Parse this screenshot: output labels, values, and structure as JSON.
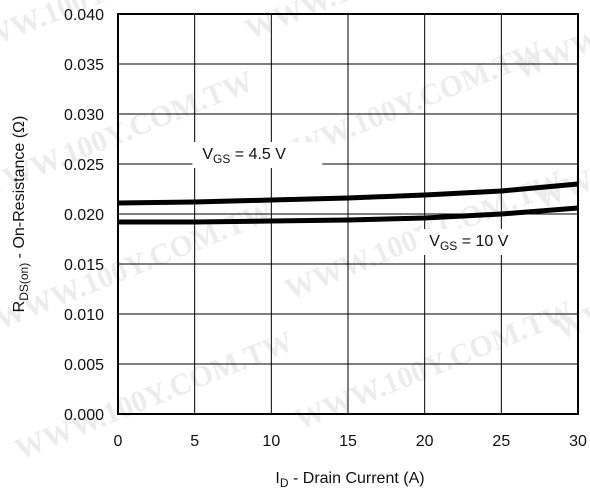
{
  "watermark": "WWW.100Y.COM.TW",
  "chart_data": {
    "type": "line",
    "title": "",
    "xlabel": {
      "main": "I",
      "sub": "D",
      "rest": " -  Drain Current (A)"
    },
    "ylabel": {
      "main": "R",
      "sub": "DS(on)",
      "rest": " - On-Resistance (Ω)"
    },
    "xlim": [
      0,
      30
    ],
    "ylim": [
      0.0,
      0.04
    ],
    "grid": true,
    "x_ticks": [
      "0",
      "5",
      "10",
      "15",
      "20",
      "25",
      "30"
    ],
    "y_ticks": [
      "0.000",
      "0.005",
      "0.010",
      "0.015",
      "0.020",
      "0.025",
      "0.030",
      "0.035",
      "0.040"
    ],
    "series": [
      {
        "name": "VGS = 4.5 V",
        "label": {
          "main": "V",
          "sub": "GS",
          "rest": " = 4.5 V"
        },
        "color": "#000000",
        "x": [
          0,
          5,
          10,
          15,
          20,
          25,
          30
        ],
        "y": [
          0.0211,
          0.0212,
          0.0214,
          0.0216,
          0.0219,
          0.0223,
          0.023
        ]
      },
      {
        "name": "VGS = 10 V",
        "label": {
          "main": "V",
          "sub": "GS",
          "rest": " = 10 V"
        },
        "color": "#000000",
        "x": [
          0,
          5,
          10,
          15,
          20,
          25,
          30
        ],
        "y": [
          0.0192,
          0.0192,
          0.0193,
          0.0194,
          0.0196,
          0.02,
          0.0206
        ]
      }
    ]
  }
}
